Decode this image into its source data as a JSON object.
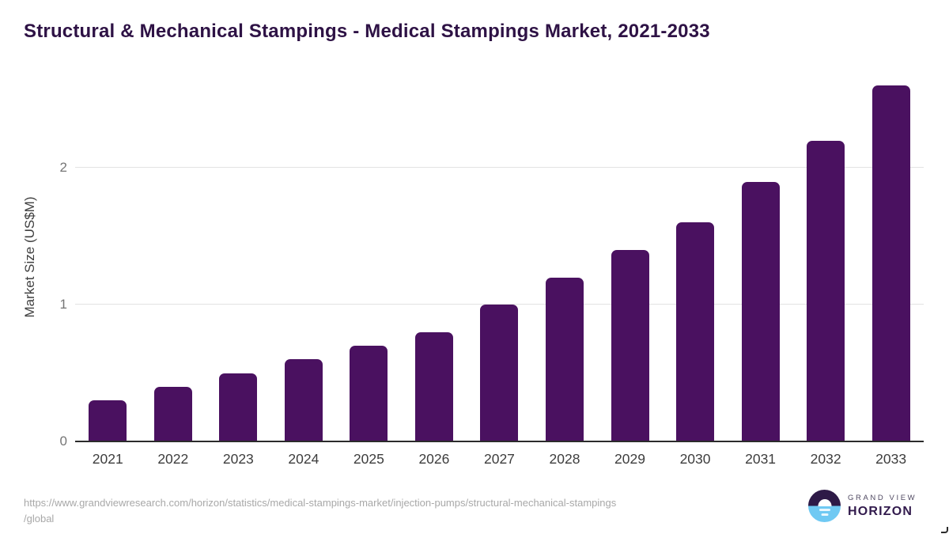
{
  "title": "Structural & Mechanical Stampings - Medical Stampings Market, 2021-2033",
  "chart_data": {
    "type": "bar",
    "title": "Structural & Mechanical Stampings - Medical Stampings Market, 2021-2033",
    "categories": [
      "2021",
      "2022",
      "2023",
      "2024",
      "2025",
      "2026",
      "2027",
      "2028",
      "2029",
      "2030",
      "2031",
      "2032",
      "2033"
    ],
    "values": [
      0.3,
      0.4,
      0.5,
      0.6,
      0.7,
      0.8,
      1.0,
      1.2,
      1.4,
      1.6,
      1.9,
      2.2,
      2.6
    ],
    "xlabel": "",
    "ylabel": "Market Size (US$M)",
    "yticks": [
      0,
      1,
      2
    ],
    "ylim": [
      0,
      2.62
    ],
    "grid": "horizontal",
    "legend": "none"
  },
  "colors": {
    "bar": "#4a1160",
    "title_text": "#2e1245",
    "gridline": "#e2e2e2",
    "axis_line": "#2b2b2b",
    "ytick_text": "#757575",
    "xtick_text": "#3d3d3d",
    "url_text": "#a8a8a8",
    "logo_purple": "#2e1a47",
    "logo_blue": "#6fc9f3"
  },
  "footer": {
    "source_url_line1": "https://www.grandviewresearch.com/horizon/statistics/medical-stampings-market/injection-pumps/structural-mechanical-stampings",
    "source_url_line2": "/global",
    "brand_top": "GRAND VIEW",
    "brand_bottom": "HORIZON"
  }
}
